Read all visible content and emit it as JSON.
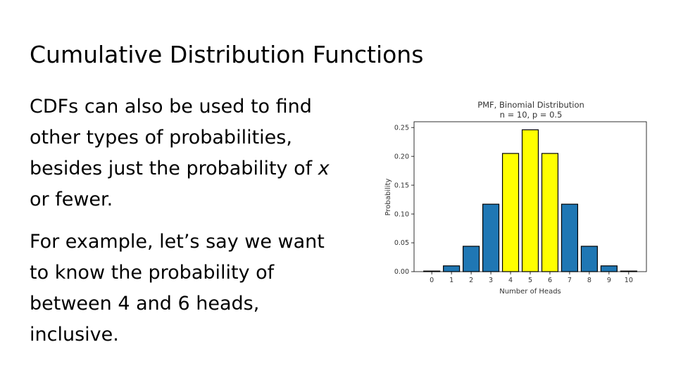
{
  "slide": {
    "title": "Cumulative Distribution Functions",
    "para1_before": "CDFs can also be used to find other types of probabilities, besides just the probability of ",
    "para1_var": "x",
    "para1_after": " or fewer.",
    "para2": "For example, let’s say we want to know the probability of between 4 and 6 heads, inclusive."
  },
  "colors": {
    "bar_default": "#1f77b4",
    "bar_highlight": "#ffff00",
    "bar_edge": "#000000"
  },
  "chart_data": {
    "type": "bar",
    "title": "PMF, Binomial Distribution",
    "subtitle": "n = 10, p = 0.5",
    "xlabel": "Number of Heads",
    "ylabel": "Probability",
    "categories": [
      "0",
      "1",
      "2",
      "3",
      "4",
      "5",
      "6",
      "7",
      "8",
      "9",
      "10"
    ],
    "values": [
      0.001,
      0.01,
      0.044,
      0.117,
      0.205,
      0.246,
      0.205,
      0.117,
      0.044,
      0.01,
      0.001
    ],
    "highlighted": [
      4,
      5,
      6
    ],
    "ylim": [
      0,
      0.26
    ],
    "yticks": [
      "0.00",
      "0.05",
      "0.10",
      "0.15",
      "0.20",
      "0.25"
    ],
    "ytick_values": [
      0,
      0.05,
      0.1,
      0.15,
      0.2,
      0.25
    ],
    "grid": false,
    "legend": "none"
  }
}
